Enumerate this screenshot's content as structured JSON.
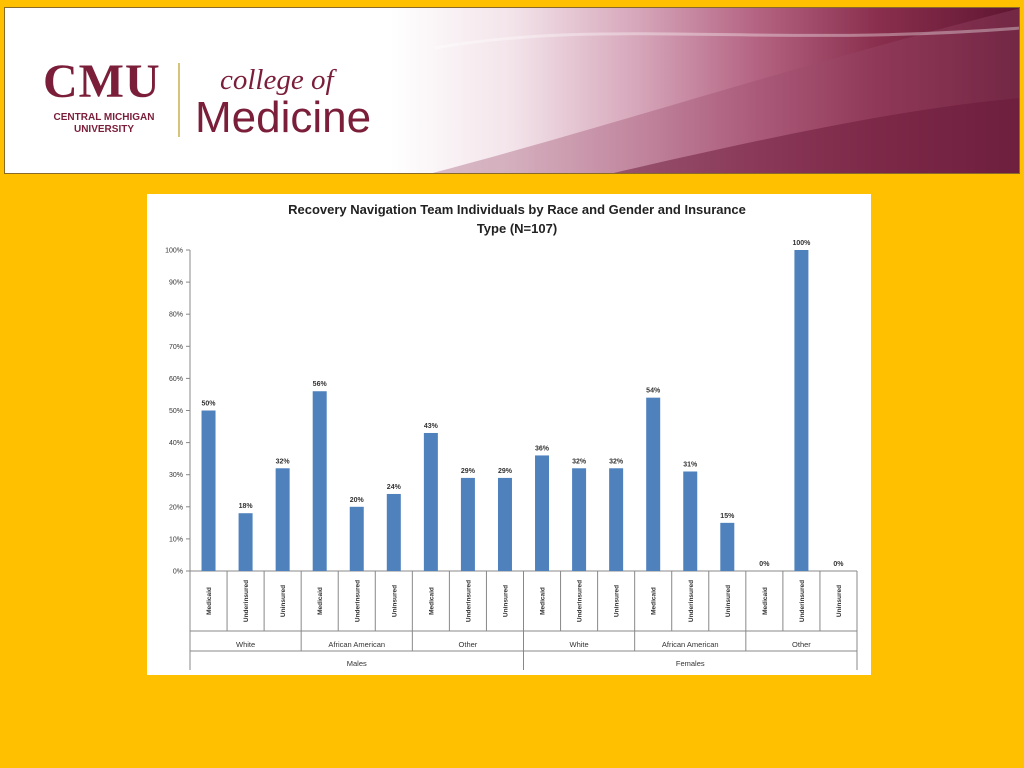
{
  "banner": {
    "logo_cmu": "CMU",
    "logo_central_line1": "CENTRAL MICHIGAN",
    "logo_central_line2": "UNIVERSITY",
    "logo_college": "college of",
    "logo_medicine": "Medicine"
  },
  "colors": {
    "background": "#FFC000",
    "bar": "#4F81BD",
    "brand_maroon": "#7a1e3a"
  },
  "chart_data": {
    "type": "bar",
    "title_line1": "Recovery Navigation Team Individuals by Race and Gender and Insurance",
    "title_line2": "Type (N=107)",
    "categories": [
      "Medicaid",
      "Underinsured",
      "Uninsured",
      "Medicaid",
      "Underinsured",
      "Uninsured",
      "Medicaid",
      "Underinsured",
      "Uninsured",
      "Medicaid",
      "Underinsured",
      "Uninsured",
      "Medicaid",
      "Underinsured",
      "Uninsured",
      "Medicaid",
      "Underinsured",
      "Uninsured"
    ],
    "values": [
      50,
      18,
      32,
      56,
      20,
      24,
      43,
      29,
      29,
      36,
      32,
      32,
      54,
      31,
      15,
      0,
      100,
      0
    ],
    "labels": [
      "50%",
      "18%",
      "32%",
      "56%",
      "20%",
      "24%",
      "43%",
      "29%",
      "29%",
      "36%",
      "32%",
      "32%",
      "54%",
      "31%",
      "15%",
      "0%",
      "100%",
      "0%"
    ],
    "race_groups": [
      "White",
      "African American",
      "Other",
      "White",
      "African American",
      "Other"
    ],
    "gender_groups": [
      "Males",
      "Females"
    ],
    "yticks": [
      "0%",
      "10%",
      "20%",
      "30%",
      "40%",
      "50%",
      "60%",
      "70%",
      "80%",
      "90%",
      "100%"
    ],
    "ylim": [
      0,
      100
    ],
    "grid": false,
    "legend": "none"
  }
}
